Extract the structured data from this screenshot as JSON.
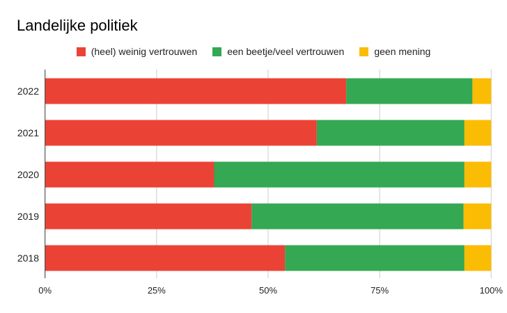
{
  "chart_data": {
    "type": "bar",
    "orientation": "horizontal",
    "stacked": "percent",
    "title": "Landelijke politiek",
    "categories": [
      "2022",
      "2021",
      "2020",
      "2019",
      "2018"
    ],
    "series": [
      {
        "name": "(heel) weinig vertrouwen",
        "color": "#ea4335",
        "values": [
          67.5,
          60.9,
          37.9,
          46.3,
          53.8
        ]
      },
      {
        "name": "een beetje/veel vertrouwen",
        "color": "#34a853",
        "values": [
          28.3,
          33.1,
          56.1,
          47.5,
          40.2
        ]
      },
      {
        "name": "geen mening",
        "color": "#fbbc04",
        "values": [
          4.2,
          6.0,
          6.0,
          6.2,
          6.0
        ]
      }
    ],
    "xticks": [
      "0%",
      "25%",
      "50%",
      "75%",
      "100%"
    ],
    "xlim": [
      0,
      100
    ],
    "legend": "top",
    "grid": true
  }
}
